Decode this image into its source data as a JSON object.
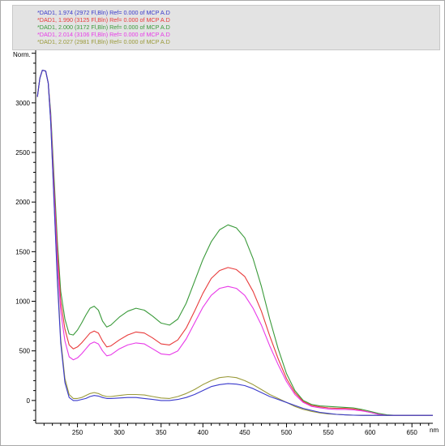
{
  "chart_data": {
    "type": "line",
    "ylabel": "Norm.",
    "xlabel": "nm",
    "xlim": [
      200,
      675
    ],
    "ylim": [
      -230,
      3530
    ],
    "x_ticks": [
      250,
      300,
      350,
      400,
      450,
      500,
      550,
      600,
      650
    ],
    "x_tick_labels": [
      "250",
      "300",
      "350",
      "400",
      "450",
      "500",
      "550",
      "600",
      "650"
    ],
    "y_ticks": [
      0,
      500,
      1000,
      1500,
      2000,
      2500,
      3000
    ],
    "y_tick_labels": [
      "0",
      "500",
      "1000",
      "1500",
      "2000",
      "2500",
      "3000"
    ],
    "legend_position": "top",
    "series": [
      {
        "name": "*DAD1, 1.974 (2972 Fl,Bln) Ref= 0.000 of MCP A.D",
        "color": "#3a3acc",
        "x": [
          202,
          205,
          208,
          212,
          215,
          218,
          222,
          226,
          230,
          235,
          240,
          245,
          250,
          255,
          260,
          265,
          270,
          275,
          280,
          285,
          290,
          300,
          310,
          320,
          330,
          340,
          350,
          360,
          370,
          380,
          390,
          400,
          410,
          420,
          430,
          440,
          450,
          460,
          470,
          480,
          490,
          500,
          510,
          520,
          530,
          540,
          550,
          560,
          570,
          580,
          590,
          600,
          610,
          620,
          630,
          640,
          650,
          660,
          675
        ],
        "y": [
          3060,
          3250,
          3330,
          3320,
          3200,
          2800,
          2000,
          1200,
          580,
          180,
          30,
          0,
          0,
          10,
          20,
          40,
          50,
          45,
          30,
          20,
          20,
          25,
          30,
          30,
          20,
          10,
          0,
          0,
          10,
          30,
          60,
          100,
          140,
          160,
          170,
          165,
          150,
          120,
          80,
          40,
          10,
          -20,
          -50,
          -80,
          -100,
          -120,
          -130,
          -140,
          -145,
          -148,
          -150,
          -150,
          -150,
          -150,
          -150,
          -150,
          -150,
          -150,
          -150
        ]
      },
      {
        "name": "*DAD1, 1.990 (3125 Fl,Bln) Ref= 0.000 of MCP A.D",
        "color": "#e83a3a",
        "x": [
          202,
          205,
          208,
          212,
          215,
          218,
          222,
          226,
          230,
          235,
          240,
          245,
          250,
          255,
          260,
          265,
          270,
          275,
          280,
          285,
          290,
          300,
          310,
          320,
          330,
          340,
          350,
          360,
          370,
          380,
          390,
          400,
          410,
          420,
          430,
          440,
          450,
          460,
          470,
          480,
          490,
          500,
          510,
          520,
          530,
          540,
          550,
          560,
          570,
          580,
          590,
          600,
          610,
          620,
          630,
          640,
          650,
          660,
          675
        ],
        "y": [
          3060,
          3250,
          3330,
          3320,
          3200,
          2850,
          2150,
          1500,
          1000,
          720,
          560,
          520,
          540,
          580,
          630,
          680,
          700,
          680,
          600,
          540,
          550,
          610,
          660,
          690,
          680,
          630,
          570,
          560,
          610,
          730,
          900,
          1080,
          1230,
          1310,
          1340,
          1320,
          1250,
          1100,
          900,
          650,
          420,
          220,
          80,
          -10,
          -50,
          -65,
          -75,
          -80,
          -80,
          -85,
          -100,
          -120,
          -140,
          -150,
          -150,
          -150,
          -150,
          -150,
          -150
        ]
      },
      {
        "name": "*DAD1, 2.000 (3172 Fl,Bln) Ref= 0.000 of MCP A.D",
        "color": "#3a9a3a",
        "x": [
          202,
          205,
          208,
          212,
          215,
          218,
          222,
          226,
          230,
          235,
          240,
          245,
          250,
          255,
          260,
          265,
          270,
          275,
          280,
          285,
          290,
          300,
          310,
          320,
          330,
          340,
          350,
          360,
          370,
          380,
          390,
          400,
          410,
          420,
          430,
          440,
          450,
          460,
          470,
          480,
          490,
          500,
          510,
          520,
          530,
          540,
          550,
          560,
          570,
          580,
          590,
          600,
          610,
          620,
          630,
          640,
          650,
          660,
          675
        ],
        "y": [
          3060,
          3250,
          3330,
          3320,
          3200,
          2900,
          2250,
          1600,
          1100,
          820,
          670,
          660,
          710,
          780,
          860,
          930,
          950,
          910,
          800,
          740,
          760,
          840,
          900,
          930,
          910,
          850,
          780,
          760,
          820,
          980,
          1200,
          1420,
          1600,
          1720,
          1770,
          1740,
          1640,
          1430,
          1150,
          820,
          520,
          270,
          100,
          0,
          -40,
          -55,
          -60,
          -65,
          -70,
          -75,
          -90,
          -110,
          -130,
          -145,
          -150,
          -150,
          -150,
          -150,
          -150
        ]
      },
      {
        "name": "*DAD1, 2.014 (3106 Fl,Bln) Ref= 0.000 of MCP A.D",
        "color": "#e83ae8",
        "x": [
          202,
          205,
          208,
          212,
          215,
          218,
          222,
          226,
          230,
          235,
          240,
          245,
          250,
          255,
          260,
          265,
          270,
          275,
          280,
          285,
          290,
          300,
          310,
          320,
          330,
          340,
          350,
          360,
          370,
          380,
          390,
          400,
          410,
          420,
          430,
          440,
          450,
          460,
          470,
          480,
          490,
          500,
          510,
          520,
          530,
          540,
          550,
          560,
          570,
          580,
          590,
          600,
          610,
          620,
          630,
          640,
          650,
          660,
          675
        ],
        "y": [
          3060,
          3250,
          3330,
          3320,
          3200,
          2850,
          2100,
          1400,
          900,
          600,
          440,
          410,
          430,
          470,
          520,
          570,
          590,
          570,
          500,
          450,
          460,
          520,
          560,
          580,
          570,
          520,
          470,
          460,
          500,
          620,
          780,
          940,
          1060,
          1130,
          1150,
          1130,
          1060,
          930,
          760,
          550,
          360,
          190,
          60,
          -20,
          -60,
          -75,
          -85,
          -90,
          -90,
          -95,
          -105,
          -120,
          -140,
          -150,
          -150,
          -150,
          -150,
          -150,
          -150
        ]
      },
      {
        "name": "*DAD1, 2.027 (2981 Fl,Bln) Ref= 0.000 of MCP A.D",
        "color": "#9a9a3a",
        "x": [
          202,
          205,
          208,
          212,
          215,
          218,
          222,
          226,
          230,
          235,
          240,
          245,
          250,
          255,
          260,
          265,
          270,
          275,
          280,
          285,
          290,
          300,
          310,
          320,
          330,
          340,
          350,
          360,
          370,
          380,
          390,
          400,
          410,
          420,
          430,
          440,
          450,
          460,
          470,
          480,
          490,
          500,
          510,
          520,
          530,
          540,
          550,
          560,
          570,
          580,
          590,
          600,
          610,
          620,
          630,
          640,
          650,
          660,
          675
        ],
        "y": [
          3060,
          3250,
          3330,
          3320,
          3200,
          2800,
          2000,
          1250,
          620,
          220,
          60,
          20,
          20,
          30,
          50,
          70,
          80,
          70,
          50,
          40,
          40,
          50,
          60,
          60,
          55,
          40,
          25,
          20,
          40,
          70,
          110,
          160,
          200,
          230,
          240,
          230,
          200,
          160,
          110,
          60,
          20,
          -20,
          -60,
          -90,
          -110,
          -125,
          -135,
          -140,
          -145,
          -148,
          -150,
          -150,
          -150,
          -150,
          -150,
          -150,
          -150,
          -150,
          -150
        ]
      }
    ]
  }
}
